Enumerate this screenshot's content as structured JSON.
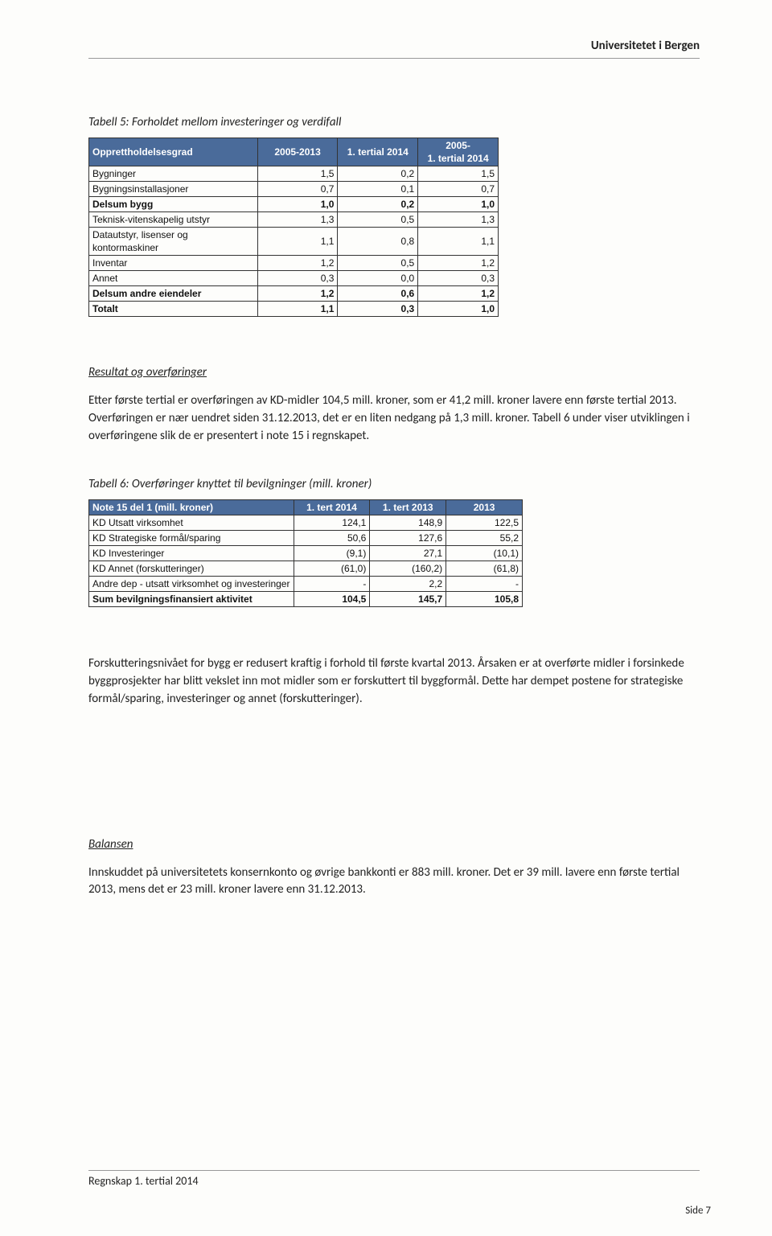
{
  "header": {
    "org": "Universitetet i Bergen"
  },
  "table5": {
    "caption": "Tabell 5: Forholdet mellom investeringer og verdifall",
    "columns": [
      "Opprettholdelsesgrad",
      "2005-2013",
      "1. tertial 2014",
      "2005-\n1. tertial 2014"
    ],
    "rows": [
      {
        "label": "Bygninger",
        "c1": "1,5",
        "c2": "0,2",
        "c3": "1,5",
        "bold": false
      },
      {
        "label": "Bygningsinstallasjoner",
        "c1": "0,7",
        "c2": "0,1",
        "c3": "0,7",
        "bold": false
      },
      {
        "label": "Delsum bygg",
        "c1": "1,0",
        "c2": "0,2",
        "c3": "1,0",
        "bold": true
      },
      {
        "label": "Teknisk-vitenskapelig utstyr",
        "c1": "1,3",
        "c2": "0,5",
        "c3": "1,3",
        "bold": false
      },
      {
        "label": "Datautstyr, lisenser og kontormaskiner",
        "c1": "1,1",
        "c2": "0,8",
        "c3": "1,1",
        "bold": false
      },
      {
        "label": "Inventar",
        "c1": "1,2",
        "c2": "0,5",
        "c3": "1,2",
        "bold": false
      },
      {
        "label": "Annet",
        "c1": "0,3",
        "c2": "0,0",
        "c3": "0,3",
        "bold": false
      },
      {
        "label": "Delsum andre eiendeler",
        "c1": "1,2",
        "c2": "0,6",
        "c3": "1,2",
        "bold": true
      },
      {
        "label": "Totalt",
        "c1": "1,1",
        "c2": "0,3",
        "c3": "1,0",
        "bold": true
      }
    ]
  },
  "sectionA": {
    "heading": "Resultat og overføringer",
    "para": "Etter første tertial er overføringen av KD-midler 104,5 mill. kroner, som er 41,2 mill. kroner lavere enn første tertial 2013. Overføringen er nær uendret siden 31.12.2013, det er en liten nedgang på 1,3 mill. kroner. Tabell 6 under viser utviklingen i overføringene slik de er presentert i note 15 i regnskapet."
  },
  "table6": {
    "caption": "Tabell 6: Overføringer knyttet til bevilgninger (mill. kroner)",
    "columns": [
      "Note 15 del 1 (mill. kroner)",
      "1. tert 2014",
      "1. tert 2013",
      "2013"
    ],
    "rows": [
      {
        "label": "KD Utsatt virksomhet",
        "c1": "124,1",
        "c2": "148,9",
        "c3": "122,5",
        "bold": false
      },
      {
        "label": "KD Strategiske formål/sparing",
        "c1": "50,6",
        "c2": "127,6",
        "c3": "55,2",
        "bold": false
      },
      {
        "label": "KD Investeringer",
        "c1": "(9,1)",
        "c2": "27,1",
        "c3": "(10,1)",
        "bold": false
      },
      {
        "label": "KD Annet (forskutteringer)",
        "c1": "(61,0)",
        "c2": "(160,2)",
        "c3": "(61,8)",
        "bold": false
      },
      {
        "label": "Andre dep - utsatt virksomhet og investeringer",
        "c1": "-",
        "c2": "2,2",
        "c3": "-",
        "bold": false
      },
      {
        "label": "Sum bevilgningsfinansiert aktivitet",
        "c1": "104,5",
        "c2": "145,7",
        "c3": "105,8",
        "bold": true
      }
    ]
  },
  "paraB": "Forskutteringsnivået for bygg er redusert kraftig i forhold til første kvartal 2013. Årsaken er at overførte midler i forsinkede byggprosjekter har blitt vekslet inn mot midler som er forskuttert til byggformål. Dette har dempet postene for strategiske formål/sparing, investeringer og annet (forskutteringer).",
  "sectionC": {
    "heading": "Balansen",
    "para": "Innskuddet på universitetets konsernkonto og øvrige bankkonti er 883 mill. kroner. Det er 39 mill. lavere enn første tertial 2013, mens det er 23 mill. kroner lavere enn 31.12.2013."
  },
  "footer": {
    "left": "Regnskap 1. tertial 2014",
    "right": "Side 7"
  }
}
